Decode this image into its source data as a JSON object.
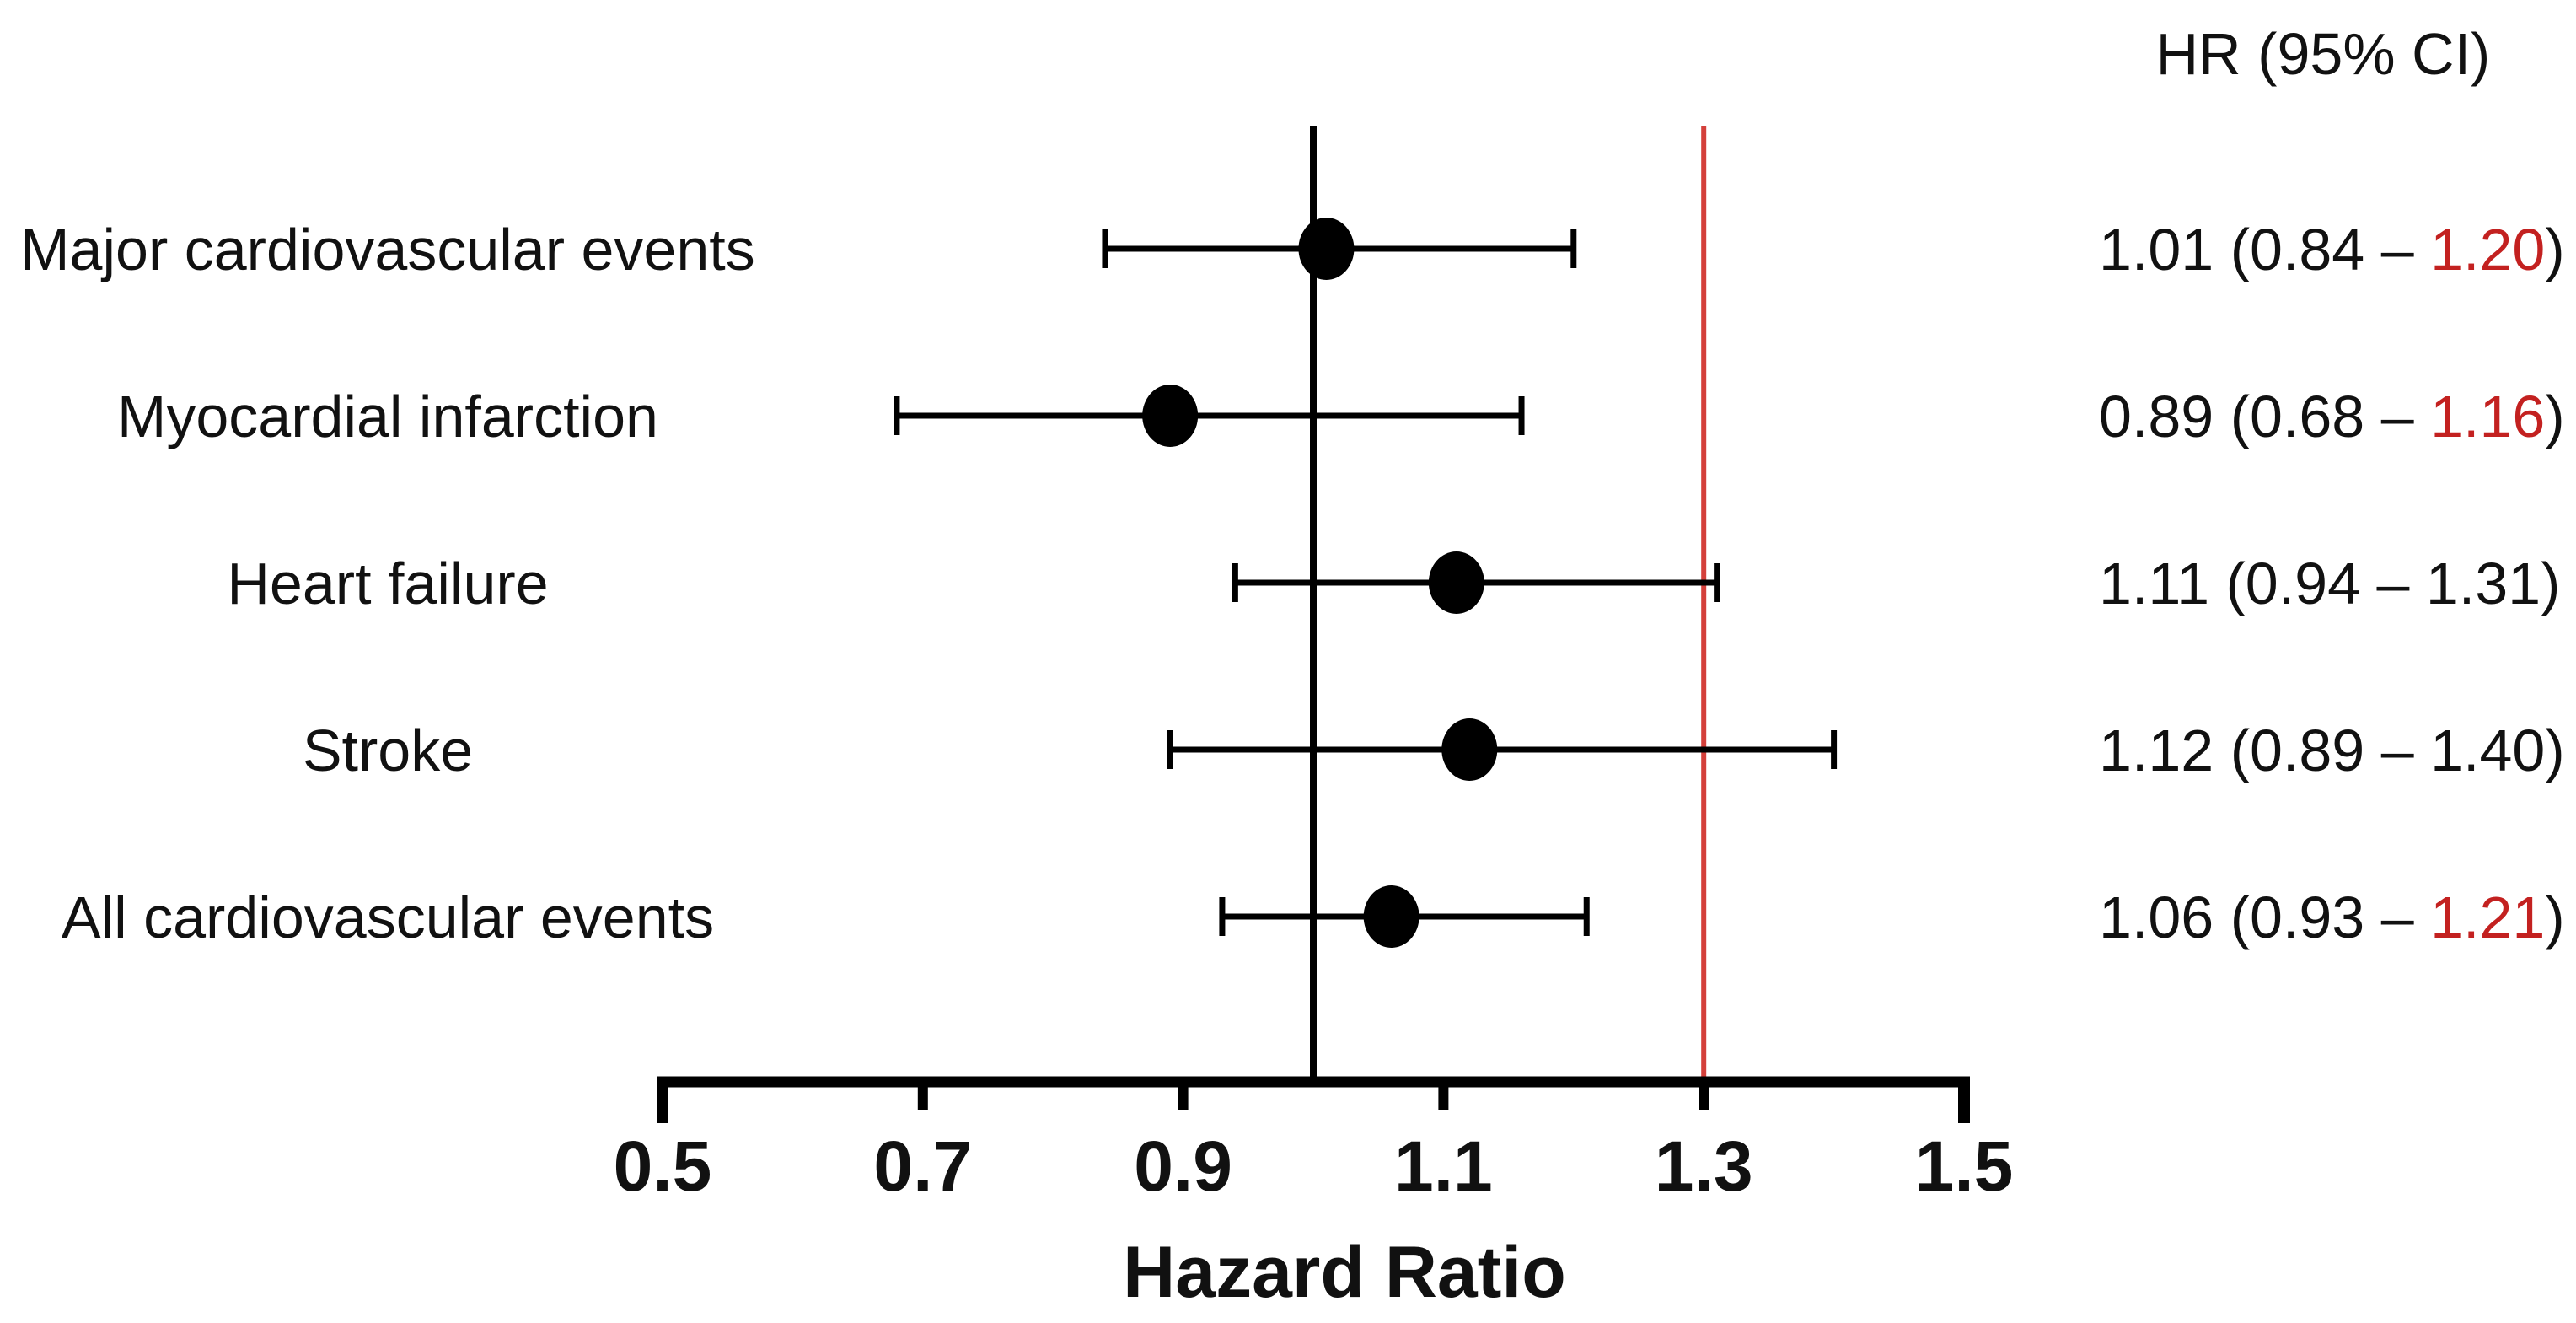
{
  "chart_data": {
    "type": "scatter",
    "variant": "forest_plot",
    "title": "",
    "xlabel": "Hazard Ratio",
    "value_column_header": "HR (95% CI)",
    "xlim": [
      0.5,
      1.5
    ],
    "x_ticks": [
      "0.5",
      "0.7",
      "0.9",
      "1.1",
      "1.3",
      "1.5"
    ],
    "grid": false,
    "legend": "none",
    "reference_lines": [
      {
        "x": 1.0,
        "color": "#000000",
        "style": "solid",
        "name": "null-effect-line"
      },
      {
        "x": 1.3,
        "color": "#d4403b",
        "style": "solid",
        "name": "red-threshold-line"
      }
    ],
    "rows": [
      {
        "label": "Major cardiovascular events",
        "hr": 1.01,
        "ci_low": 0.84,
        "ci_high": 1.2,
        "hr_text": "1.01",
        "ci_low_text": "0.84",
        "ci_high_text": "1.20",
        "ci_high_red": true,
        "display": "1.01 (0.84 – 1.20)"
      },
      {
        "label": "Myocardial infarction",
        "hr": 0.89,
        "ci_low": 0.68,
        "ci_high": 1.16,
        "hr_text": "0.89",
        "ci_low_text": "0.68",
        "ci_high_text": "1.16",
        "ci_high_red": true,
        "display": "0.89 (0.68 – 1.16)"
      },
      {
        "label": "Heart failure",
        "hr": 1.11,
        "ci_low": 0.94,
        "ci_high": 1.31,
        "hr_text": "1.11",
        "ci_low_text": "0.94",
        "ci_high_text": "1.31",
        "ci_high_red": false,
        "display": "1.11 (0.94 – 1.31)"
      },
      {
        "label": "Stroke",
        "hr": 1.12,
        "ci_low": 0.89,
        "ci_high": 1.4,
        "hr_text": "1.12",
        "ci_low_text": "0.89",
        "ci_high_text": "1.40",
        "ci_high_red": false,
        "display": "1.12 (0.89 – 1.40)"
      },
      {
        "label": "All cardiovascular events",
        "hr": 1.06,
        "ci_low": 0.93,
        "ci_high": 1.21,
        "hr_text": "1.06",
        "ci_low_text": "0.93",
        "ci_high_text": "1.21",
        "ci_high_red": true,
        "display": "1.06 (0.93 – 1.21)"
      }
    ],
    "colors": {
      "marker": "#000000",
      "axis": "#000000",
      "text": "#111111",
      "highlight_red": "#c32120",
      "ref_line_red": "#d4403b"
    }
  }
}
